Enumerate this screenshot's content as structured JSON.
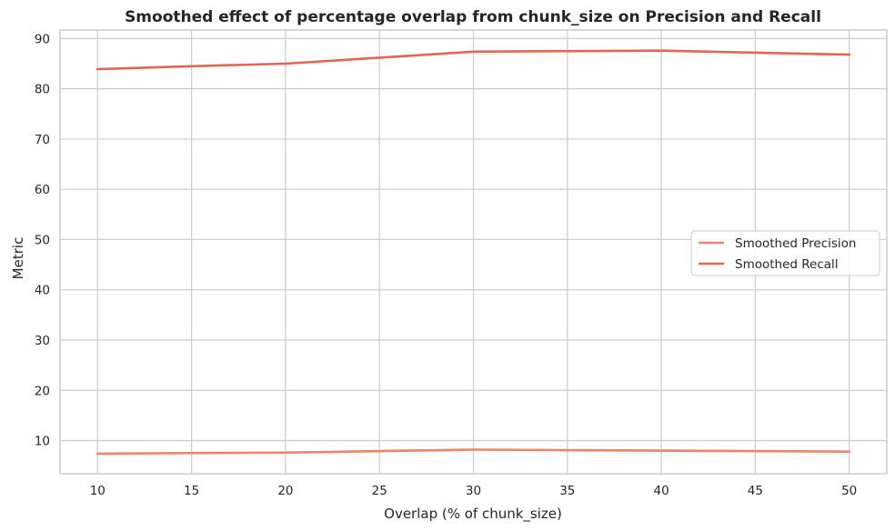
{
  "chart_data": {
    "type": "line",
    "title": "Smoothed effect of percentage overlap from chunk_size on Precision and Recall",
    "xlabel": "Overlap (% of chunk_size)",
    "ylabel": "Metric",
    "x": [
      10,
      15,
      20,
      25,
      30,
      35,
      40,
      45,
      50
    ],
    "xticks": [
      10,
      15,
      20,
      25,
      30,
      35,
      40,
      45,
      50
    ],
    "yticks": [
      10,
      20,
      30,
      40,
      50,
      60,
      70,
      80,
      90
    ],
    "xlim": [
      8,
      52
    ],
    "ylim": [
      3.4,
      91.7
    ],
    "grid": true,
    "legend_placement": "center-right",
    "series": [
      {
        "name": "Smoothed Precision",
        "color": "#e8856a",
        "values": [
          7.4,
          7.5,
          7.6,
          7.9,
          8.2,
          8.1,
          8.0,
          7.9,
          7.8
        ]
      },
      {
        "name": "Smoothed Recall",
        "color": "#e06656",
        "values": [
          83.9,
          84.5,
          85.0,
          86.2,
          87.4,
          87.5,
          87.6,
          87.2,
          86.8
        ]
      }
    ]
  }
}
